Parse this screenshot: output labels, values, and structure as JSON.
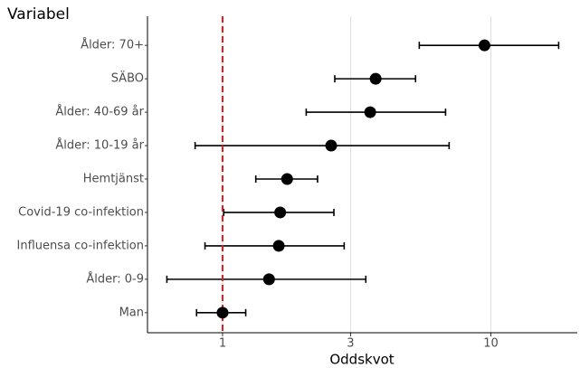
{
  "chart_data": {
    "type": "forest",
    "y_title": "Variabel",
    "x_title": "Oddskvot",
    "categories": [
      "Ålder: 70+",
      "SÄBO",
      "Ålder: 40-69 år",
      "Ålder: 10-19 år",
      "Hemtjänst",
      "Covid-19 co-infektion",
      "Influensa co-infektion",
      "Ålder: 0-9",
      "Man"
    ],
    "values": [
      9.47,
      3.72,
      3.55,
      2.54,
      1.74,
      1.64,
      1.62,
      1.49,
      1.0
    ],
    "lower": [
      5.41,
      2.62,
      2.05,
      0.79,
      1.33,
      1.01,
      0.86,
      0.62,
      0.8
    ],
    "upper": [
      17.9,
      5.24,
      6.78,
      6.99,
      2.26,
      2.6,
      2.84,
      3.42,
      1.22
    ],
    "color": "#000000",
    "ref_line": 1,
    "ref_color": "#e41a1c",
    "xlim": [
      0.525,
      21
    ],
    "xticks": [
      1,
      3,
      10
    ],
    "log_x": true,
    "grid": true
  }
}
